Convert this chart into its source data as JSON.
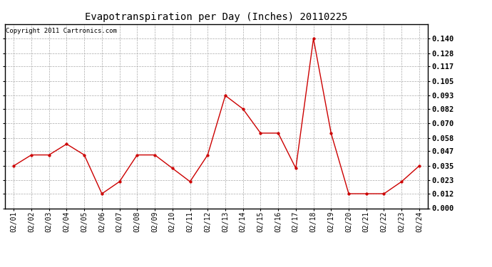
{
  "title": "Evapotranspiration per Day (Inches) 20110225",
  "copyright_text": "Copyright 2011 Cartronics.com",
  "dates": [
    "02/01",
    "02/02",
    "02/03",
    "02/04",
    "02/05",
    "02/06",
    "02/07",
    "02/08",
    "02/09",
    "02/10",
    "02/11",
    "02/12",
    "02/13",
    "02/14",
    "02/15",
    "02/16",
    "02/17",
    "02/18",
    "02/19",
    "02/20",
    "02/21",
    "02/22",
    "02/23",
    "02/24"
  ],
  "values": [
    0.035,
    0.044,
    0.044,
    0.053,
    0.044,
    0.012,
    0.022,
    0.044,
    0.044,
    0.033,
    0.022,
    0.044,
    0.093,
    0.082,
    0.062,
    0.062,
    0.033,
    0.14,
    0.062,
    0.012,
    0.012,
    0.012,
    0.022,
    0.035
  ],
  "ylim": [
    0.0,
    0.152
  ],
  "yticks": [
    0.0,
    0.012,
    0.023,
    0.035,
    0.047,
    0.058,
    0.07,
    0.082,
    0.093,
    0.105,
    0.117,
    0.128,
    0.14
  ],
  "line_color": "#cc0000",
  "marker_color": "#cc0000",
  "background_color": "#ffffff",
  "grid_color": "#aaaaaa",
  "title_fontsize": 10,
  "copyright_fontsize": 6.5,
  "tick_fontsize": 7,
  "ytick_fontsize": 7.5
}
